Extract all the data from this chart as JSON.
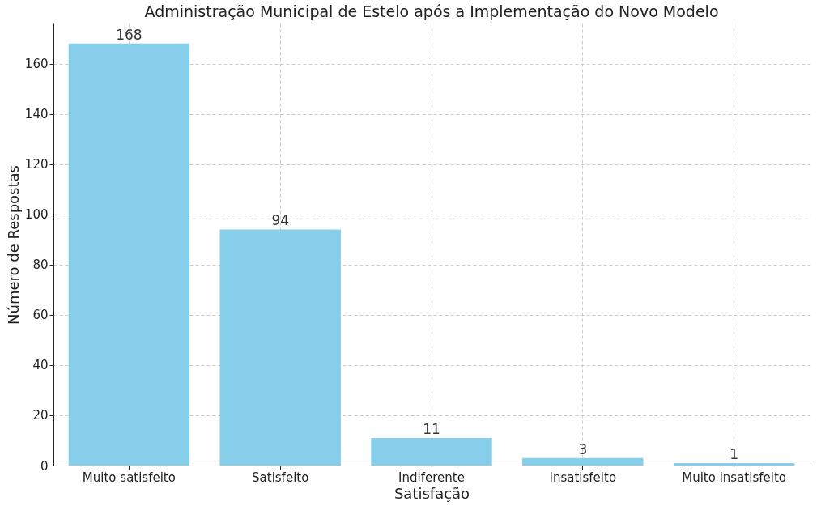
{
  "chart_data": {
    "type": "bar",
    "title": "Administração Municipal de Estelo após a Implementação do Novo Modelo",
    "xlabel": "Satisfação",
    "ylabel": "Número de Respostas",
    "categories": [
      "Muito satisfeito",
      "Satisfeito",
      "Indiferente",
      "Insatisfeito",
      "Muito insatisfeito"
    ],
    "values": [
      168,
      94,
      11,
      3,
      1
    ],
    "color": "#87ceeb",
    "data_labels": true,
    "ylim": [
      0,
      176
    ],
    "yticks": [
      0,
      20,
      40,
      60,
      80,
      100,
      120,
      140,
      160
    ],
    "grid": true
  }
}
